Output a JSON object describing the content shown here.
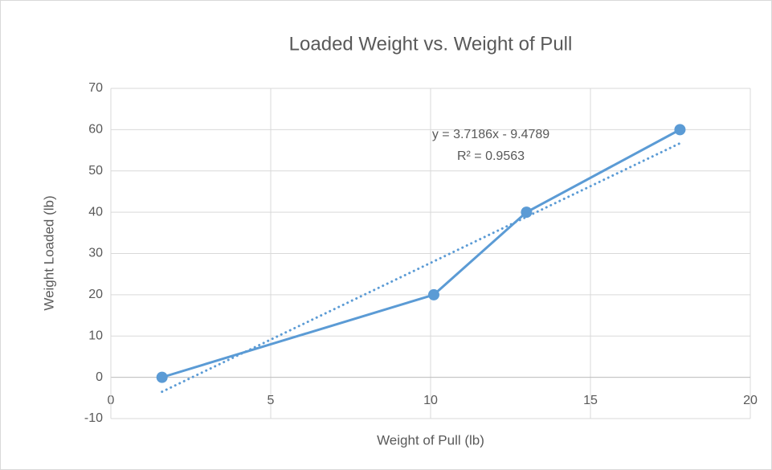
{
  "chart_data": {
    "type": "scatter",
    "title": "Loaded Weight vs. Weight of Pull",
    "x_label": "Weight of Pull (lb)",
    "y_label": "Weight Loaded (lb)",
    "xlim": [
      0,
      20
    ],
    "xticks": [
      0,
      5,
      10,
      15,
      20
    ],
    "ylim": [
      -10,
      70
    ],
    "yticks": [
      -10,
      0,
      10,
      20,
      30,
      40,
      50,
      60,
      70
    ],
    "grid": true,
    "series": [
      {
        "color": "#5b9bd5",
        "x": [
          1.6,
          10.1,
          13,
          17.8
        ],
        "values": [
          0,
          20,
          40,
          60
        ]
      }
    ],
    "trendline": {
      "color": "#5b9bd5",
      "x": [
        1.6,
        17.8
      ],
      "values": [
        -3.5,
        56.7
      ]
    },
    "annotations": [
      "y = 3.7186x - 9.4789",
      "R² = 0.9563"
    ]
  }
}
